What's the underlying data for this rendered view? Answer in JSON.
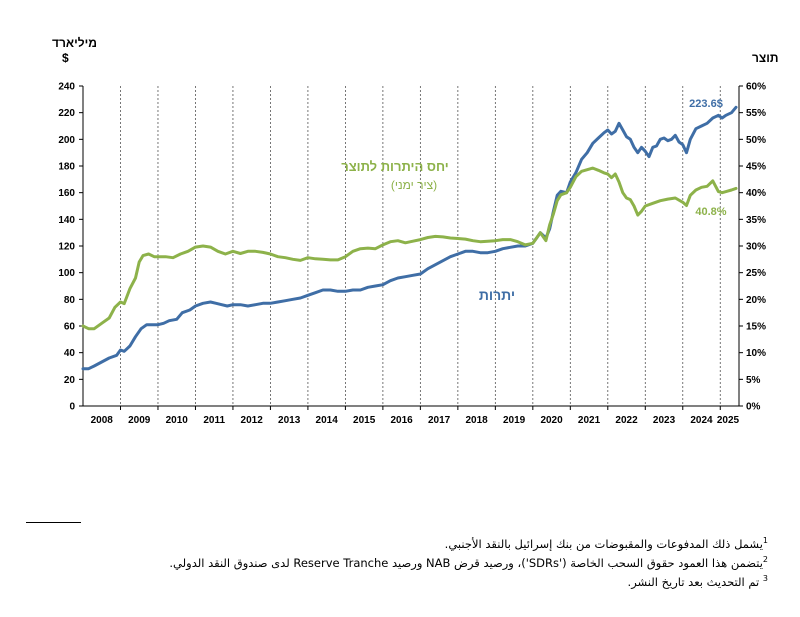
{
  "chart_data": {
    "type": "line",
    "left_axis": {
      "unit_line1": "מיליארד",
      "unit_line2": "$",
      "ylim": [
        0,
        240
      ],
      "ticks": [
        "0",
        "20",
        "40",
        "60",
        "80",
        "100",
        "120",
        "140",
        "160",
        "180",
        "200",
        "220",
        "240"
      ]
    },
    "right_axis": {
      "title": "תוצר",
      "ylim": [
        0,
        60
      ],
      "ticks": [
        "0%",
        "5%",
        "10%",
        "15%",
        "20%",
        "25%",
        "30%",
        "35%",
        "40%",
        "45%",
        "50%",
        "55%",
        "60%"
      ]
    },
    "xlim": [
      2008,
      2025.5
    ],
    "x_ticks": [
      "2008",
      "2009",
      "2010",
      "2011",
      "2012",
      "2013",
      "2014",
      "2015",
      "2016",
      "2017",
      "2018",
      "2019",
      "2020",
      "2021",
      "2022",
      "2023",
      "2024",
      "2025"
    ],
    "grid": "vertical dashed at year boundaries",
    "series": [
      {
        "name": "יתרות",
        "axis": "left",
        "color": "#3f6ea6",
        "end_label": "223.6$",
        "points": [
          [
            2008.0,
            28
          ],
          [
            2008.15,
            28
          ],
          [
            2008.3,
            30
          ],
          [
            2008.5,
            33
          ],
          [
            2008.7,
            36
          ],
          [
            2008.9,
            38
          ],
          [
            2009.0,
            42
          ],
          [
            2009.1,
            41
          ],
          [
            2009.25,
            45
          ],
          [
            2009.4,
            52
          ],
          [
            2009.55,
            58
          ],
          [
            2009.7,
            61
          ],
          [
            2009.85,
            61
          ],
          [
            2010.0,
            61
          ],
          [
            2010.15,
            62
          ],
          [
            2010.3,
            64
          ],
          [
            2010.5,
            65
          ],
          [
            2010.65,
            70
          ],
          [
            2010.85,
            72
          ],
          [
            2011.0,
            75
          ],
          [
            2011.2,
            77
          ],
          [
            2011.4,
            78
          ],
          [
            2011.55,
            77
          ],
          [
            2011.7,
            76
          ],
          [
            2011.85,
            75
          ],
          [
            2012.0,
            76
          ],
          [
            2012.2,
            76
          ],
          [
            2012.4,
            75
          ],
          [
            2012.6,
            76
          ],
          [
            2012.8,
            77
          ],
          [
            2013.0,
            77
          ],
          [
            2013.2,
            78
          ],
          [
            2013.4,
            79
          ],
          [
            2013.6,
            80
          ],
          [
            2013.8,
            81
          ],
          [
            2014.0,
            83
          ],
          [
            2014.2,
            85
          ],
          [
            2014.4,
            87
          ],
          [
            2014.6,
            87
          ],
          [
            2014.8,
            86
          ],
          [
            2015.0,
            86
          ],
          [
            2015.2,
            87
          ],
          [
            2015.4,
            87
          ],
          [
            2015.6,
            89
          ],
          [
            2015.8,
            90
          ],
          [
            2016.0,
            91
          ],
          [
            2016.2,
            94
          ],
          [
            2016.4,
            96
          ],
          [
            2016.6,
            97
          ],
          [
            2016.8,
            98
          ],
          [
            2017.0,
            99
          ],
          [
            2017.2,
            103
          ],
          [
            2017.4,
            106
          ],
          [
            2017.6,
            109
          ],
          [
            2017.8,
            112
          ],
          [
            2018.0,
            114
          ],
          [
            2018.2,
            116
          ],
          [
            2018.4,
            116
          ],
          [
            2018.6,
            115
          ],
          [
            2018.8,
            115
          ],
          [
            2019.0,
            116
          ],
          [
            2019.2,
            118
          ],
          [
            2019.4,
            119
          ],
          [
            2019.6,
            120
          ],
          [
            2019.8,
            120
          ],
          [
            2020.0,
            122
          ],
          [
            2020.1,
            126
          ],
          [
            2020.2,
            130
          ],
          [
            2020.35,
            126
          ],
          [
            2020.45,
            133
          ],
          [
            2020.55,
            146
          ],
          [
            2020.65,
            158
          ],
          [
            2020.75,
            161
          ],
          [
            2020.9,
            160
          ],
          [
            2021.0,
            168
          ],
          [
            2021.15,
            175
          ],
          [
            2021.3,
            185
          ],
          [
            2021.45,
            190
          ],
          [
            2021.6,
            197
          ],
          [
            2021.75,
            201
          ],
          [
            2021.9,
            205
          ],
          [
            2022.0,
            207
          ],
          [
            2022.1,
            204
          ],
          [
            2022.2,
            206
          ],
          [
            2022.3,
            212
          ],
          [
            2022.4,
            207
          ],
          [
            2022.5,
            202
          ],
          [
            2022.6,
            200
          ],
          [
            2022.7,
            194
          ],
          [
            2022.8,
            190
          ],
          [
            2022.9,
            194
          ],
          [
            2023.0,
            191
          ],
          [
            2023.1,
            187
          ],
          [
            2023.2,
            194
          ],
          [
            2023.3,
            195
          ],
          [
            2023.4,
            200
          ],
          [
            2023.5,
            201
          ],
          [
            2023.6,
            199
          ],
          [
            2023.7,
            200
          ],
          [
            2023.8,
            203
          ],
          [
            2023.9,
            198
          ],
          [
            2024.0,
            196
          ],
          [
            2024.1,
            190
          ],
          [
            2024.2,
            200
          ],
          [
            2024.35,
            208
          ],
          [
            2024.5,
            210
          ],
          [
            2024.65,
            212
          ],
          [
            2024.8,
            216
          ],
          [
            2024.95,
            218
          ],
          [
            2025.05,
            216
          ],
          [
            2025.15,
            218
          ],
          [
            2025.3,
            220
          ],
          [
            2025.42,
            224
          ]
        ]
      },
      {
        "name": "יחס היתרות לתוצר",
        "name_line2": "(ציר ימני)",
        "axis": "right",
        "color": "#8db24a",
        "end_label": "40.8%",
        "points": [
          [
            2008.0,
            15
          ],
          [
            2008.15,
            14.5
          ],
          [
            2008.3,
            14.5
          ],
          [
            2008.5,
            15.5
          ],
          [
            2008.7,
            16.5
          ],
          [
            2008.85,
            18.5
          ],
          [
            2009.0,
            19.5
          ],
          [
            2009.1,
            19.2
          ],
          [
            2009.25,
            22
          ],
          [
            2009.4,
            24
          ],
          [
            2009.5,
            27
          ],
          [
            2009.6,
            28.2
          ],
          [
            2009.75,
            28.5
          ],
          [
            2009.9,
            28
          ],
          [
            2010.0,
            28
          ],
          [
            2010.2,
            28
          ],
          [
            2010.4,
            27.8
          ],
          [
            2010.6,
            28.5
          ],
          [
            2010.8,
            29
          ],
          [
            2011.0,
            29.8
          ],
          [
            2011.2,
            30
          ],
          [
            2011.4,
            29.8
          ],
          [
            2011.6,
            29
          ],
          [
            2011.8,
            28.5
          ],
          [
            2012.0,
            29
          ],
          [
            2012.2,
            28.6
          ],
          [
            2012.4,
            29
          ],
          [
            2012.6,
            29
          ],
          [
            2012.8,
            28.8
          ],
          [
            2013.0,
            28.5
          ],
          [
            2013.2,
            28
          ],
          [
            2013.4,
            27.8
          ],
          [
            2013.6,
            27.5
          ],
          [
            2013.8,
            27.3
          ],
          [
            2014.0,
            27.8
          ],
          [
            2014.2,
            27.6
          ],
          [
            2014.4,
            27.5
          ],
          [
            2014.6,
            27.4
          ],
          [
            2014.8,
            27.4
          ],
          [
            2015.0,
            28
          ],
          [
            2015.2,
            29
          ],
          [
            2015.4,
            29.5
          ],
          [
            2015.6,
            29.6
          ],
          [
            2015.8,
            29.5
          ],
          [
            2016.0,
            30.2
          ],
          [
            2016.2,
            30.8
          ],
          [
            2016.4,
            31
          ],
          [
            2016.6,
            30.6
          ],
          [
            2016.8,
            30.9
          ],
          [
            2017.0,
            31.2
          ],
          [
            2017.2,
            31.6
          ],
          [
            2017.4,
            31.8
          ],
          [
            2017.6,
            31.7
          ],
          [
            2017.8,
            31.5
          ],
          [
            2018.0,
            31.4
          ],
          [
            2018.2,
            31.3
          ],
          [
            2018.4,
            31
          ],
          [
            2018.6,
            30.8
          ],
          [
            2018.8,
            30.9
          ],
          [
            2019.0,
            31
          ],
          [
            2019.2,
            31.2
          ],
          [
            2019.4,
            31.2
          ],
          [
            2019.6,
            30.8
          ],
          [
            2019.8,
            30.2
          ],
          [
            2020.0,
            30.5
          ],
          [
            2020.1,
            31.5
          ],
          [
            2020.2,
            32.5
          ],
          [
            2020.35,
            31
          ],
          [
            2020.45,
            34
          ],
          [
            2020.55,
            36
          ],
          [
            2020.65,
            38.5
          ],
          [
            2020.75,
            39.6
          ],
          [
            2020.9,
            40
          ],
          [
            2021.0,
            41
          ],
          [
            2021.15,
            43
          ],
          [
            2021.3,
            44
          ],
          [
            2021.45,
            44.3
          ],
          [
            2021.6,
            44.6
          ],
          [
            2021.75,
            44.2
          ],
          [
            2021.9,
            43.7
          ],
          [
            2022.0,
            43.5
          ],
          [
            2022.1,
            42.8
          ],
          [
            2022.2,
            43.5
          ],
          [
            2022.3,
            42
          ],
          [
            2022.4,
            40
          ],
          [
            2022.5,
            39
          ],
          [
            2022.6,
            38.7
          ],
          [
            2022.7,
            37.5
          ],
          [
            2022.8,
            35.8
          ],
          [
            2022.9,
            36.5
          ],
          [
            2023.0,
            37.5
          ],
          [
            2023.2,
            38
          ],
          [
            2023.4,
            38.5
          ],
          [
            2023.6,
            38.8
          ],
          [
            2023.8,
            39
          ],
          [
            2024.0,
            38.2
          ],
          [
            2024.1,
            37.6
          ],
          [
            2024.2,
            39.5
          ],
          [
            2024.35,
            40.5
          ],
          [
            2024.5,
            41
          ],
          [
            2024.65,
            41.2
          ],
          [
            2024.8,
            42.2
          ],
          [
            2024.95,
            40.2
          ],
          [
            2025.05,
            40
          ],
          [
            2025.2,
            40.3
          ],
          [
            2025.3,
            40.5
          ],
          [
            2025.42,
            40.8
          ]
        ]
      }
    ]
  },
  "footnotes": [
    {
      "num": "1",
      "text": "يشمل ذلك المدفوعات والمقبوضات من بنك إسرائيل بالنقد الأجنبي."
    },
    {
      "num": "2",
      "text": "يتضمن هذا العمود حقوق السحب الخاصة ('SDRs')، ورصيد قرض NAB ورصيد Reserve Tranche لدى صندوق النقد الدولي."
    },
    {
      "num": "3",
      "text": "تم التحديث بعد تاريخ النشر."
    }
  ]
}
